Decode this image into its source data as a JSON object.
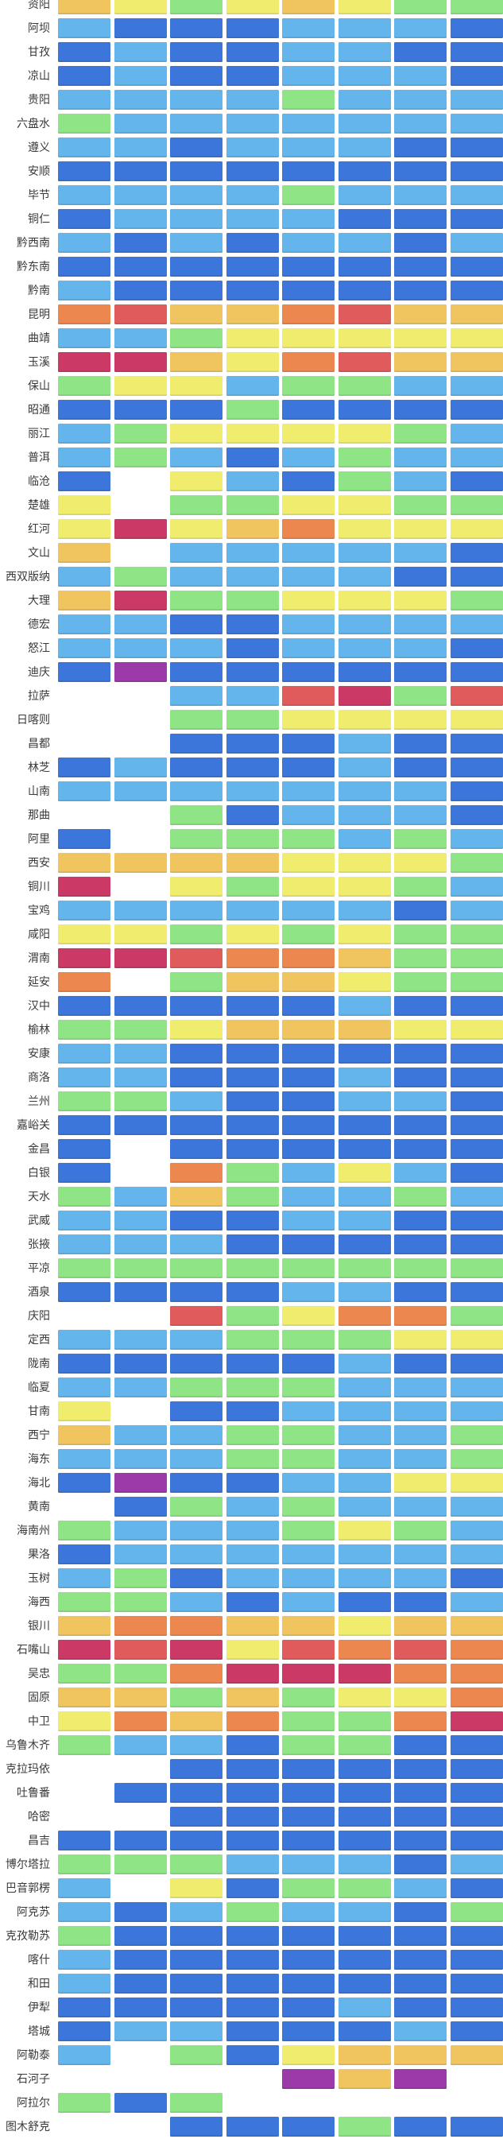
{
  "chart_data": {
    "type": "heatmap",
    "title": "",
    "xlabel": "",
    "ylabel": "",
    "num_columns": 8,
    "column_labels_visible": false,
    "legend_visible": false,
    "grid": "white gaps between cells",
    "palette": {
      "B": "#3C76DA",
      "b": "#63B5EC",
      "g": "#8FE585",
      "y": "#F0ED6E",
      "a": "#F0C45F",
      "o": "#EC8750",
      "r": "#E05C5C",
      "c": "#CB3A67",
      "p": "#9B3AA8",
      "w": "none"
    },
    "palette_names": {
      "B": "strong-blue",
      "b": "sky-blue",
      "g": "light-green",
      "y": "yellow",
      "a": "amber",
      "o": "orange",
      "r": "salmon-red",
      "c": "crimson-rose",
      "p": "purple",
      "w": "empty-white"
    },
    "rows": [
      {
        "label": "资阳",
        "cells": "aygyaygg"
      },
      {
        "label": "阿坝",
        "cells": "bBBBbbbB"
      },
      {
        "label": "甘孜",
        "cells": "BbBBbbBB"
      },
      {
        "label": "凉山",
        "cells": "BbBBbbbB"
      },
      {
        "label": "贵阳",
        "cells": "bbbbgbbb"
      },
      {
        "label": "六盘水",
        "cells": "gbbbbbbb"
      },
      {
        "label": "遵义",
        "cells": "bbBbbbBB"
      },
      {
        "label": "安顺",
        "cells": "BBBBBBBB"
      },
      {
        "label": "毕节",
        "cells": "bbbbgbbb"
      },
      {
        "label": "铜仁",
        "cells": "BbbbbBBB"
      },
      {
        "label": "黔西南",
        "cells": "bBbBbbBb"
      },
      {
        "label": "黔东南",
        "cells": "BBBBBBBB"
      },
      {
        "label": "黔南",
        "cells": "bBBBBBBB"
      },
      {
        "label": "昆明",
        "cells": "oraaoraa"
      },
      {
        "label": "曲靖",
        "cells": "bbgyyyyy"
      },
      {
        "label": "玉溪",
        "cells": "ccayoraa"
      },
      {
        "label": "保山",
        "cells": "gyybggbb"
      },
      {
        "label": "昭通",
        "cells": "BBBgBBBB"
      },
      {
        "label": "丽江",
        "cells": "bgyyyygb"
      },
      {
        "label": "普洱",
        "cells": "bgbBbgbb"
      },
      {
        "label": "临沧",
        "cells": "BwybBgbB"
      },
      {
        "label": "楚雄",
        "cells": "ywggyygg"
      },
      {
        "label": "红河",
        "cells": "ycyaoyyy"
      },
      {
        "label": "文山",
        "cells": "awbbbbbB"
      },
      {
        "label": "西双版纳",
        "cells": "bgbbbbBB"
      },
      {
        "label": "大理",
        "cells": "acggyyyg"
      },
      {
        "label": "德宏",
        "cells": "bbBBbbbb"
      },
      {
        "label": "怒江",
        "cells": "bbbBbbbB"
      },
      {
        "label": "迪庆",
        "cells": "BpBBBBBB"
      },
      {
        "label": "拉萨",
        "cells": "wwbbrcgr"
      },
      {
        "label": "日喀则",
        "cells": "wwggyyyy"
      },
      {
        "label": "昌都",
        "cells": "wwBBBbBB"
      },
      {
        "label": "林芝",
        "cells": "BbBBBbBB"
      },
      {
        "label": "山南",
        "cells": "bbbbbbbB"
      },
      {
        "label": "那曲",
        "cells": "wwgBbbbB"
      },
      {
        "label": "阿里",
        "cells": "Bwgggbgb"
      },
      {
        "label": "西安",
        "cells": "aaaayyyg"
      },
      {
        "label": "铜川",
        "cells": "cwygyygb"
      },
      {
        "label": "宝鸡",
        "cells": "bbbbbbBb"
      },
      {
        "label": "咸阳",
        "cells": "yygygygg"
      },
      {
        "label": "渭南",
        "cells": "ccrooagg"
      },
      {
        "label": "延安",
        "cells": "owgaaygg"
      },
      {
        "label": "汉中",
        "cells": "BBBBBbBB"
      },
      {
        "label": "榆林",
        "cells": "ggyaaayy"
      },
      {
        "label": "安康",
        "cells": "bbBBBBBB"
      },
      {
        "label": "商洛",
        "cells": "bbBBBbBB"
      },
      {
        "label": "兰州",
        "cells": "ggbBBbbB"
      },
      {
        "label": "嘉峪关",
        "cells": "BBBBBBBB"
      },
      {
        "label": "金昌",
        "cells": "BwBBBBBB"
      },
      {
        "label": "白银",
        "cells": "BwogbybB"
      },
      {
        "label": "天水",
        "cells": "gbagbbgb"
      },
      {
        "label": "武威",
        "cells": "bbBBbbBB"
      },
      {
        "label": "张掖",
        "cells": "bbbBBBBB"
      },
      {
        "label": "平凉",
        "cells": "gggggggg"
      },
      {
        "label": "酒泉",
        "cells": "BBBBbbBB"
      },
      {
        "label": "庆阳",
        "cells": "wwrgyoog"
      },
      {
        "label": "定西",
        "cells": "bbbgggyy"
      },
      {
        "label": "陇南",
        "cells": "BBBBBbBB"
      },
      {
        "label": "临夏",
        "cells": "bbgggbbb"
      },
      {
        "label": "甘南",
        "cells": "ywBBbbbb"
      },
      {
        "label": "西宁",
        "cells": "abbggbbg"
      },
      {
        "label": "海东",
        "cells": "bbbggbbg"
      },
      {
        "label": "海北",
        "cells": "BpBBbbyy"
      },
      {
        "label": "黄南",
        "cells": "wBgbgbbb"
      },
      {
        "label": "海南州",
        "cells": "gbbbgygb"
      },
      {
        "label": "果洛",
        "cells": "Bbbbbbbb"
      },
      {
        "label": "玉树",
        "cells": "bgBbbbbB"
      },
      {
        "label": "海西",
        "cells": "ggbBbBBb"
      },
      {
        "label": "银川",
        "cells": "aooaayaa"
      },
      {
        "label": "石嘴山",
        "cells": "crcyroro"
      },
      {
        "label": "吴忠",
        "cells": "ggocccoo"
      },
      {
        "label": "固原",
        "cells": "aagagyyo"
      },
      {
        "label": "中卫",
        "cells": "yoaoggoc"
      },
      {
        "label": "乌鲁木齐",
        "cells": "gbbBggBB"
      },
      {
        "label": "克拉玛依",
        "cells": "wwBBBBBB"
      },
      {
        "label": "吐鲁番",
        "cells": "wBBBBBBB"
      },
      {
        "label": "哈密",
        "cells": "wwBBBBBB"
      },
      {
        "label": "昌吉",
        "cells": "BBBBBBBB"
      },
      {
        "label": "博尔塔拉",
        "cells": "gggbbbBb"
      },
      {
        "label": "巴音郭楞",
        "cells": "bwyBggbB"
      },
      {
        "label": "阿克苏",
        "cells": "bBbgbbBg"
      },
      {
        "label": "克孜勒苏",
        "cells": "gBBBBBBB"
      },
      {
        "label": "喀什",
        "cells": "bBBBBBBB"
      },
      {
        "label": "和田",
        "cells": "bBBBBBBB"
      },
      {
        "label": "伊犁",
        "cells": "BBBBBbBB"
      },
      {
        "label": "塔城",
        "cells": "BbbBBBbB"
      },
      {
        "label": "阿勒泰",
        "cells": "bwgByaaa"
      },
      {
        "label": "石河子",
        "cells": "wwwwpapw"
      },
      {
        "label": "阿拉尔",
        "cells": "gBgwwwww"
      },
      {
        "label": "图木舒克",
        "cells": "wwBBBgBB"
      }
    ]
  }
}
